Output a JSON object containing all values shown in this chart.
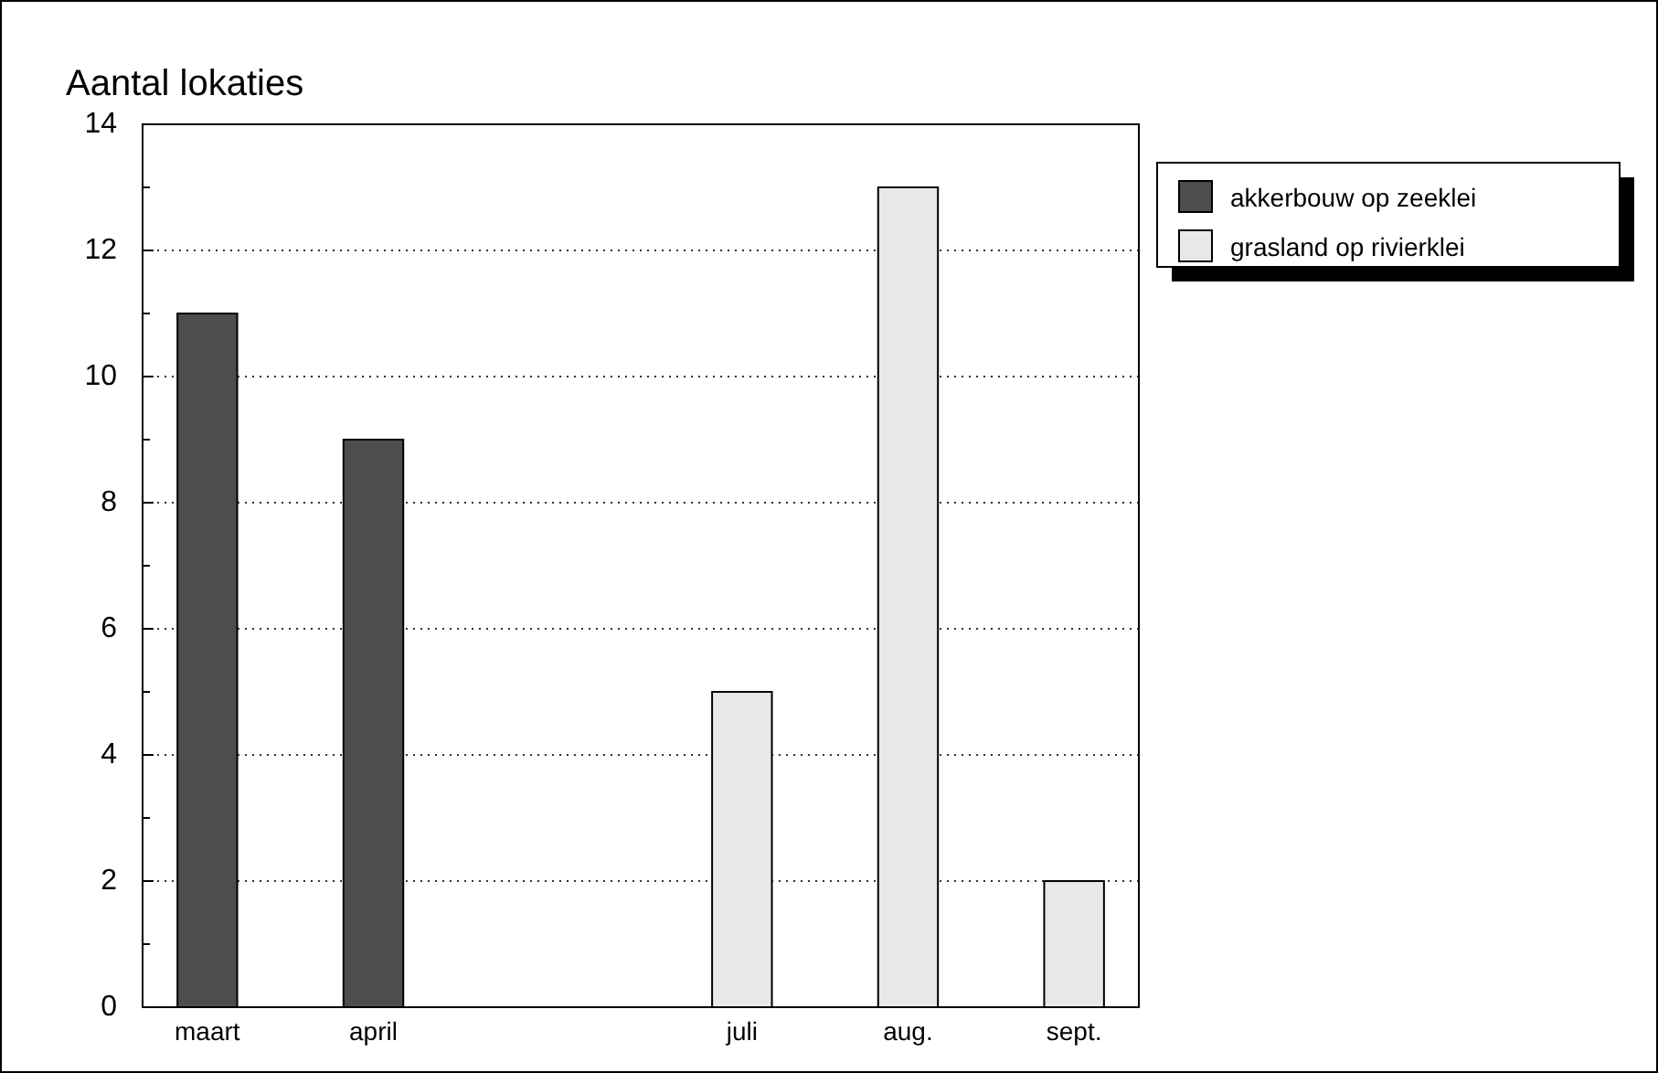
{
  "chart_data": {
    "type": "bar",
    "title": "Aantal lokaties",
    "categories": [
      "maart",
      "april",
      null,
      "juli",
      "aug.",
      "sept."
    ],
    "series": [
      {
        "name": "akkerbouw op zeeklei",
        "color": "#4d4d4d",
        "values": [
          11,
          9,
          null,
          null,
          null,
          null
        ]
      },
      {
        "name": "grasland op rivierklei",
        "color": "#e8e8e8",
        "values": [
          null,
          null,
          null,
          5,
          13,
          2
        ]
      }
    ],
    "ylim": [
      0,
      14
    ],
    "yticks": [
      0,
      2,
      4,
      6,
      8,
      10,
      12,
      14
    ],
    "grid": "y",
    "legend": "top right"
  }
}
